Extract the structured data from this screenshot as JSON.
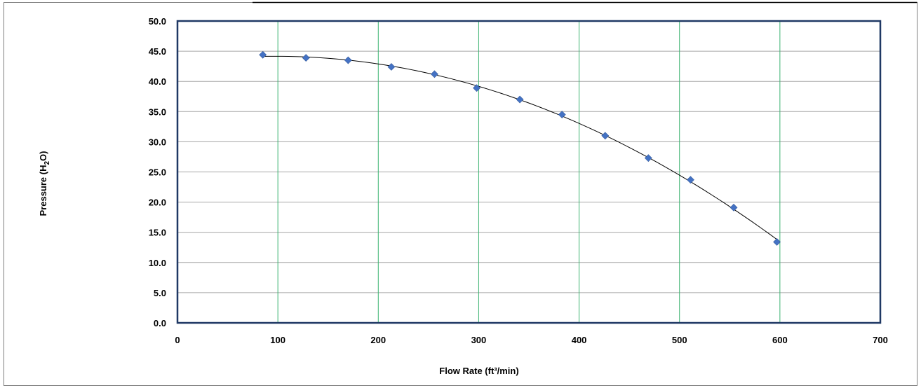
{
  "chart_data": {
    "type": "scatter",
    "xlabel": "Flow Rate (ft³/min)",
    "ylabel": {
      "prefix": "Pressure (H",
      "sub": "2",
      "suffix": "O)"
    },
    "xlim": [
      0,
      700
    ],
    "ylim": [
      0,
      50
    ],
    "xticks": [
      "0",
      "100",
      "200",
      "300",
      "400",
      "500",
      "600",
      "700"
    ],
    "yticks": [
      "0.0",
      "5.0",
      "10.0",
      "15.0",
      "20.0",
      "25.0",
      "30.0",
      "35.0",
      "40.0",
      "45.0",
      "50.0"
    ],
    "grid": {
      "vertical": true,
      "horizontal": true
    },
    "series": [
      {
        "marker": "diamond",
        "x": [
          85,
          128,
          170,
          213,
          256,
          298,
          341,
          383,
          426,
          469,
          511,
          554,
          597
        ],
        "y": [
          44.4,
          43.9,
          43.5,
          42.4,
          41.2,
          38.9,
          37.0,
          34.5,
          31.0,
          27.3,
          23.7,
          19.1,
          13.4
        ]
      }
    ],
    "trendline": {
      "type": "polynomial",
      "order": 2
    },
    "colors": {
      "marker": "#4472C4",
      "vgrid": "#3CB371",
      "hgrid": "#A6A6A6",
      "plot_border": "#1F3864",
      "trendline": "#000000"
    }
  }
}
